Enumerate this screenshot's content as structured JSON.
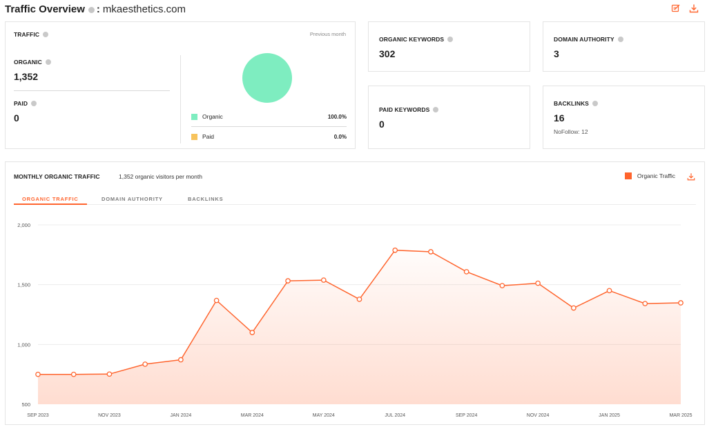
{
  "header": {
    "title": "Traffic Overview",
    "colon": ":",
    "domain": "mkaesthetics.com"
  },
  "traffic": {
    "label": "TRAFFIC",
    "period": "Previous month",
    "organic_label": "ORGANIC",
    "organic_value": "1,352",
    "paid_label": "PAID",
    "paid_value": "0",
    "legend": [
      {
        "name": "Organic",
        "pct": "100.0%",
        "color": "#7eedc0"
      },
      {
        "name": "Paid",
        "pct": "0.0%",
        "color": "#f7c35c"
      }
    ],
    "share_organic": 1.0
  },
  "organic_keywords": {
    "label": "ORGANIC KEYWORDS",
    "value": "302"
  },
  "domain_authority": {
    "label": "DOMAIN AUTHORITY",
    "value": "3"
  },
  "paid_keywords": {
    "label": "PAID KEYWORDS",
    "value": "0"
  },
  "backlinks": {
    "label": "BACKLINKS",
    "value": "16",
    "nofollow": "NoFollow: 12"
  },
  "monthly": {
    "title": "MONTHLY ORGANIC TRAFFIC",
    "subtitle": "1,352 organic visitors per month",
    "legend": "Organic Traffic",
    "tabs": [
      "ORGANIC TRAFFIC",
      "DOMAIN AUTHORITY",
      "BACKLINKS"
    ],
    "active_tab": 0
  },
  "colors": {
    "accent": "#ff642d",
    "organic": "#7eedc0",
    "paid": "#f7c35c"
  },
  "chart_data": {
    "type": "area",
    "x": [
      "Sep 2023",
      "Oct 2023",
      "Nov 2023",
      "Dec 2023",
      "Jan 2024",
      "Feb 2024",
      "Mar 2024",
      "Apr 2024",
      "May 2024",
      "Jun 2024",
      "Jul 2024",
      "Aug 2024",
      "Sep 2024",
      "Oct 2024",
      "Nov 2024",
      "Dec 2024",
      "Jan 2025",
      "Feb 2025",
      "Mar 2025"
    ],
    "x_tick_labels": [
      "SEP 2023",
      "NOV 2023",
      "JAN 2024",
      "MAR 2024",
      "MAY 2024",
      "JUL 2024",
      "SEP 2024",
      "NOV 2024",
      "JAN 2025",
      "MAR 2025"
    ],
    "series": [
      {
        "name": "Organic Traffic",
        "values": [
          750,
          750,
          752,
          835,
          872,
          1368,
          1100,
          1532,
          1538,
          1378,
          1788,
          1775,
          1608,
          1492,
          1512,
          1305,
          1450,
          1342,
          1348
        ]
      }
    ],
    "y_ticks": [
      "2,000",
      "1,500",
      "1,000",
      "500"
    ],
    "ylim": [
      500,
      2000
    ],
    "grid": true
  }
}
